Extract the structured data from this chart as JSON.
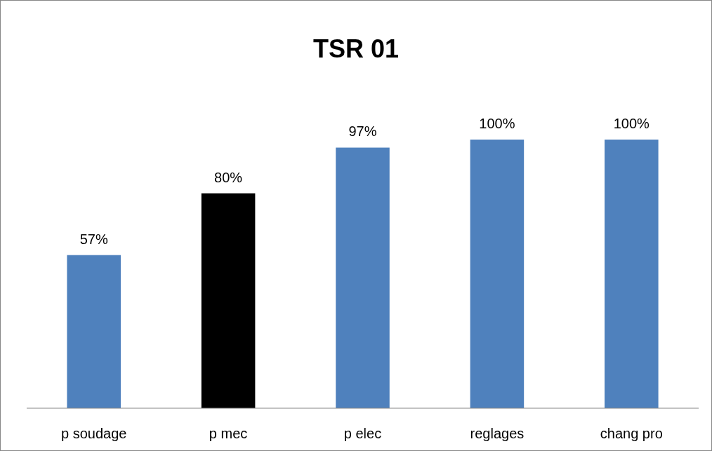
{
  "chart_data": {
    "type": "bar",
    "title": "TSR 01",
    "categories": [
      "p soudage",
      "p mec",
      "p elec",
      "reglages",
      "chang pro"
    ],
    "values": [
      57,
      80,
      97,
      100,
      100
    ],
    "colors": [
      "#4f81bd",
      "#000000",
      "#4f81bd",
      "#4f81bd",
      "#4f81bd"
    ],
    "value_labels": [
      "57%",
      "80%",
      "97%",
      "100%",
      "100%"
    ]
  }
}
